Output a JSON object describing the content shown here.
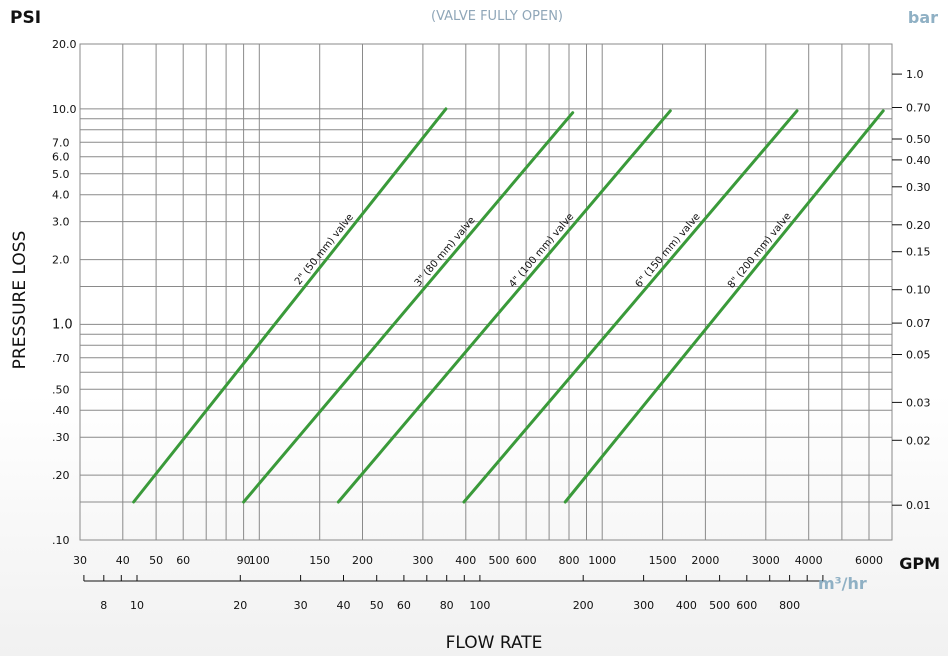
{
  "chart_data": {
    "type": "line",
    "title": "(VALVE FULLY OPEN)",
    "xlabel": "FLOW RATE",
    "ylabel": "PRESSURE LOSS",
    "x_unit_primary": "GPM",
    "x_unit_secondary": "m³/hr",
    "y_unit_left": "PSI",
    "y_unit_right": "bar",
    "x_scale": "log",
    "y_scale": "log",
    "xlim": [
      30,
      7000
    ],
    "ylim": [
      0.1,
      20
    ],
    "grid": true,
    "colors": {
      "series": "#3a9a3a",
      "grid": "#8a8a8a",
      "secondary_unit": "#8fb0c4"
    },
    "x_ticks": [
      {
        "value": 30,
        "label": "30"
      },
      {
        "value": 40,
        "label": "40"
      },
      {
        "value": 50,
        "label": "50"
      },
      {
        "value": 60,
        "label": "60"
      },
      {
        "value": 90,
        "label": "90"
      },
      {
        "value": 100,
        "label": "100"
      },
      {
        "value": 150,
        "label": "150"
      },
      {
        "value": 200,
        "label": "200"
      },
      {
        "value": 300,
        "label": "300"
      },
      {
        "value": 400,
        "label": "400"
      },
      {
        "value": 500,
        "label": "500"
      },
      {
        "value": 600,
        "label": "600"
      },
      {
        "value": 800,
        "label": "800"
      },
      {
        "value": 1000,
        "label": "1000"
      },
      {
        "value": 1500,
        "label": "1500"
      },
      {
        "value": 2000,
        "label": "2000"
      },
      {
        "value": 3000,
        "label": "3000"
      },
      {
        "value": 4000,
        "label": "4000"
      },
      {
        "value": 6000,
        "label": "6000"
      }
    ],
    "x_gridlines": [
      30,
      40,
      50,
      60,
      70,
      80,
      90,
      100,
      150,
      200,
      300,
      400,
      500,
      600,
      700,
      800,
      900,
      1000,
      1500,
      2000,
      3000,
      4000,
      5000,
      6000,
      7000
    ],
    "x2_ticks": [
      {
        "value": 8,
        "label": "8"
      },
      {
        "value": 10,
        "label": "10"
      },
      {
        "value": 20,
        "label": "20"
      },
      {
        "value": 30,
        "label": "30"
      },
      {
        "value": 40,
        "label": "40"
      },
      {
        "value": 50,
        "label": "50"
      },
      {
        "value": 60,
        "label": "60"
      },
      {
        "value": 80,
        "label": "80"
      },
      {
        "value": 100,
        "label": "100"
      },
      {
        "value": 200,
        "label": "200"
      },
      {
        "value": 300,
        "label": "300"
      },
      {
        "value": 400,
        "label": "400"
      },
      {
        "value": 500,
        "label": "500"
      },
      {
        "value": 600,
        "label": "600"
      },
      {
        "value": 800,
        "label": "800"
      }
    ],
    "x2_minor_ticks": [
      7,
      9,
      70,
      90,
      700,
      900,
      1000
    ],
    "y_ticks": [
      {
        "value": 20,
        "label": "20.0"
      },
      {
        "value": 10,
        "label": "10.0"
      },
      {
        "value": 7,
        "label": "7.0"
      },
      {
        "value": 6,
        "label": "6.0"
      },
      {
        "value": 5,
        "label": "5.0"
      },
      {
        "value": 4,
        "label": "4.0"
      },
      {
        "value": 3,
        "label": "3.0"
      },
      {
        "value": 2,
        "label": "2.0"
      },
      {
        "value": 1,
        "label": "1.0"
      },
      {
        "value": 0.7,
        "label": ".70"
      },
      {
        "value": 0.5,
        "label": ".50"
      },
      {
        "value": 0.4,
        "label": ".40"
      },
      {
        "value": 0.3,
        "label": ".30"
      },
      {
        "value": 0.2,
        "label": ".20"
      },
      {
        "value": 0.1,
        "label": ".10"
      }
    ],
    "y_gridlines": [
      20,
      10,
      9,
      8,
      7,
      6,
      5,
      4,
      3,
      2,
      1.5,
      1,
      0.9,
      0.8,
      0.7,
      0.6,
      0.5,
      0.4,
      0.3,
      0.2,
      0.15,
      0.1
    ],
    "y2_ticks": [
      {
        "value": 1.0,
        "label": "1.0"
      },
      {
        "value": 0.7,
        "label": "0.70"
      },
      {
        "value": 0.5,
        "label": "0.50"
      },
      {
        "value": 0.4,
        "label": "0.40"
      },
      {
        "value": 0.3,
        "label": "0.30"
      },
      {
        "value": 0.2,
        "label": "0.20"
      },
      {
        "value": 0.15,
        "label": "0.15"
      },
      {
        "value": 0.1,
        "label": "0.10"
      },
      {
        "value": 0.07,
        "label": "0.07"
      },
      {
        "value": 0.05,
        "label": "0.05"
      },
      {
        "value": 0.03,
        "label": "0.03"
      },
      {
        "value": 0.02,
        "label": "0.02"
      },
      {
        "value": 0.01,
        "label": "0.01"
      }
    ],
    "series": [
      {
        "name": "2\" (50 mm) valve",
        "x": [
          43,
          350
        ],
        "y": [
          0.15,
          10
        ]
      },
      {
        "name": "3\" (80 mm) valve",
        "x": [
          90,
          820
        ],
        "y": [
          0.15,
          9.6
        ]
      },
      {
        "name": "4\" (100 mm) valve",
        "x": [
          170,
          1580
        ],
        "y": [
          0.15,
          9.8
        ]
      },
      {
        "name": "6\" (150 mm) valve",
        "x": [
          395,
          3700
        ],
        "y": [
          0.15,
          9.8
        ]
      },
      {
        "name": "8\" (200 mm) valve",
        "x": [
          780,
          6600
        ],
        "y": [
          0.15,
          9.8
        ]
      }
    ]
  }
}
